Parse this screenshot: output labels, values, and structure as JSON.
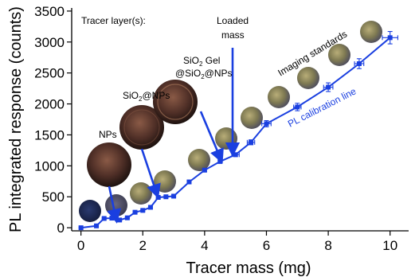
{
  "chart_data": {
    "type": "line",
    "xlabel": "Tracer mass (mg)",
    "ylabel": "PL integrated response (counts)",
    "xlim": [
      -0.3,
      10.6
    ],
    "ylim": [
      -50,
      3550
    ],
    "x_ticks": [
      0,
      2,
      4,
      6,
      8,
      10
    ],
    "y_ticks": [
      0,
      500,
      1000,
      1500,
      2000,
      2500,
      3000,
      3500
    ],
    "grid": false,
    "series": [
      {
        "name": "PL calibration line",
        "color": "#1a3fe0",
        "x": [
          0,
          0.5,
          0.75,
          1.0,
          1.25,
          1.5,
          1.75,
          2.0,
          2.25,
          2.5,
          2.75,
          3.0,
          3.5,
          4.0,
          4.5,
          5.0,
          5.5,
          6.0,
          7.0,
          8.0,
          9.0,
          10.0
        ],
        "y": [
          0,
          30,
          150,
          155,
          125,
          160,
          250,
          280,
          330,
          490,
          500,
          510,
          740,
          930,
          1070,
          1180,
          1380,
          1680,
          1950,
          2270,
          2650,
          3070
        ],
        "yerr": [
          10,
          10,
          10,
          10,
          10,
          10,
          10,
          10,
          15,
          15,
          15,
          15,
          20,
          20,
          25,
          30,
          40,
          50,
          60,
          70,
          80,
          100
        ],
        "xerr": [
          0,
          0,
          0,
          0,
          0,
          0,
          0,
          0,
          0,
          0,
          0,
          0,
          0,
          0,
          0,
          0.12,
          0.12,
          0.15,
          0.12,
          0.15,
          0.15,
          0.25
        ]
      }
    ],
    "annotations": {
      "tracer_layers": "Tracer layer(s):",
      "nps": "NPs",
      "sio2_nps": {
        "main": "SiO",
        "sub": "2",
        "rest": "@NPs"
      },
      "sio2_gel_line1": {
        "main": "SiO",
        "sub": "2",
        "rest": " Gel"
      },
      "sio2_gel_line2": {
        "main": "@SiO",
        "sub": "2",
        "rest": "@NPs"
      },
      "loaded_mass_line1": "Loaded",
      "loaded_mass_line2": "mass",
      "imaging_standards": "Imaging standards",
      "calibration_line": "PL calibration line"
    },
    "colors": {
      "series": "#1a3fe0",
      "arrows": "#1a3fe0",
      "axis": "#000000",
      "tracer_image_dark": "#4a2a22",
      "standard_image": "#7a7350"
    }
  }
}
